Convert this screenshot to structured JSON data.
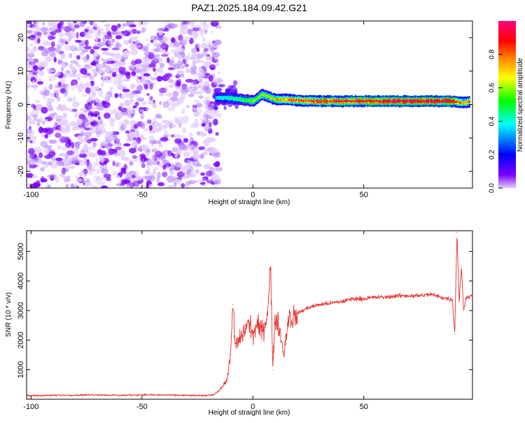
{
  "figure": {
    "title": "PAZ1.2025.184.09.42.G21"
  },
  "chart_data": [
    {
      "type": "heatmap",
      "xlabel": "Height of straight line (km)",
      "ylabel": "Frequency (Hz)",
      "xlim": [
        -102,
        99
      ],
      "ylim": [
        -25,
        25
      ],
      "xticks": [
        -100,
        -50,
        0,
        50
      ],
      "yticks": [
        -20,
        -10,
        0,
        10,
        20
      ],
      "grid": false,
      "colormap": "hsv-rainbow (violet to magenta)",
      "colorbar": {
        "label": "Normalized spectral amplitude",
        "range": [
          0,
          1
        ],
        "ticks": [
          "0.0",
          "0.2",
          "0.4",
          "0.6",
          "0.8"
        ],
        "stops": [
          "#e6ccff",
          "#7a00ff",
          "#0000ff",
          "#00ffff",
          "#00ff00",
          "#ffff00",
          "#ff8000",
          "#ff0000",
          "#ff0080"
        ]
      },
      "noise_region": {
        "x_range": [
          -102,
          -15
        ],
        "frequency_range": [
          -25,
          25
        ],
        "typical_amplitude": 0.1
      },
      "signal_ridge": [
        {
          "x": -17,
          "frequency": 2.0,
          "amplitude": 0.35
        },
        {
          "x": -12,
          "frequency": 2.0,
          "amplitude": 0.45
        },
        {
          "x": -5,
          "frequency": 1.5,
          "amplitude": 0.5
        },
        {
          "x": 0,
          "frequency": 1.0,
          "amplitude": 0.6
        },
        {
          "x": 4,
          "frequency": 3.0,
          "amplitude": 0.6
        },
        {
          "x": 10,
          "frequency": 1.5,
          "amplitude": 0.7
        },
        {
          "x": 15,
          "frequency": 1.5,
          "amplitude": 0.8
        },
        {
          "x": 20,
          "frequency": 1.2,
          "amplitude": 0.85
        },
        {
          "x": 30,
          "frequency": 1.0,
          "amplitude": 0.9
        },
        {
          "x": 50,
          "frequency": 1.0,
          "amplitude": 0.95
        },
        {
          "x": 70,
          "frequency": 1.0,
          "amplitude": 1.0
        },
        {
          "x": 90,
          "frequency": 1.0,
          "amplitude": 1.0
        },
        {
          "x": 95,
          "frequency": 0.5,
          "amplitude": 0.7
        },
        {
          "x": 98,
          "frequency": 1.0,
          "amplitude": 0.8
        }
      ]
    },
    {
      "type": "line",
      "xlabel": "Height of straight line (km)",
      "ylabel": "SNR (10 * v/v)",
      "xlim": [
        -102,
        99
      ],
      "ylim": [
        0,
        5700
      ],
      "xticks": [
        -100,
        -50,
        0,
        50
      ],
      "yticks": [
        1000,
        2000,
        3000,
        4000,
        5000
      ],
      "grid": false,
      "series": [
        {
          "color": "#e8302a",
          "x": [
            -102,
            -90,
            -80,
            -70,
            -60,
            -50,
            -40,
            -30,
            -22,
            -18,
            -15,
            -12,
            -11,
            -10,
            -9,
            -8,
            -6,
            -4,
            -2,
            0,
            2,
            4,
            6,
            7,
            8,
            9,
            10,
            12,
            14,
            16,
            18,
            20,
            25,
            30,
            35,
            40,
            45,
            50,
            55,
            60,
            65,
            70,
            75,
            80,
            85,
            88,
            90,
            91,
            92,
            93,
            94,
            95,
            96,
            97,
            99
          ],
          "y": [
            120,
            130,
            140,
            150,
            130,
            150,
            140,
            130,
            120,
            150,
            300,
            600,
            1000,
            1500,
            3200,
            1800,
            2000,
            2300,
            2600,
            2200,
            2500,
            2300,
            2600,
            3500,
            4500,
            1000,
            2800,
            2400,
            1500,
            2800,
            2700,
            2900,
            3100,
            3200,
            3250,
            3300,
            3400,
            3400,
            3450,
            3450,
            3500,
            3500,
            3500,
            3550,
            3450,
            3400,
            3350,
            2200,
            5650,
            3300,
            4500,
            3000,
            3400,
            3450,
            3500
          ]
        }
      ]
    }
  ]
}
